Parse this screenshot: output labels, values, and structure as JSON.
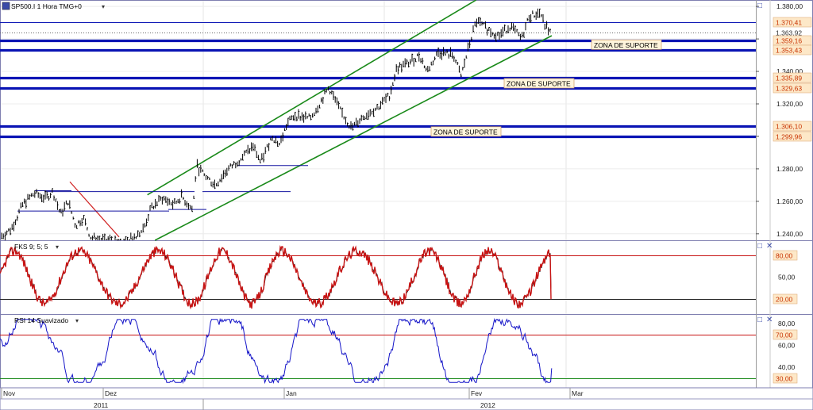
{
  "header": {
    "symbol_label": "SP500.I 1 Hora TMG+0",
    "dropdown_glyph": "▾"
  },
  "chart_data": [
    {
      "type": "line",
      "name": "SP500.I 1 Hora TMG+0",
      "subtype": "ohlc-bars",
      "y_ticks": [
        "1.380,00",
        "1.360,00",
        "1.340,00",
        "1.320,00",
        "1.300,00",
        "1.280,00",
        "1.260,00",
        "1.240,00"
      ],
      "y_tick_values": [
        1380,
        1360,
        1340,
        1320,
        1300,
        1280,
        1260,
        1240
      ],
      "ylim": [
        1236,
        1383
      ],
      "price_lines": [
        {
          "value": 1370.41,
          "label": "1.370,41",
          "style": "thin"
        },
        {
          "value": 1363.92,
          "label": "1.363,92",
          "style": "dotted"
        },
        {
          "value": 1359.16,
          "label": "1.359,16",
          "style": "thick"
        },
        {
          "value": 1353.43,
          "label": "1.353,43",
          "style": "thick"
        },
        {
          "value": 1335.89,
          "label": "1.335,89",
          "style": "thick"
        },
        {
          "value": 1329.63,
          "label": "1.329,63",
          "style": "thick"
        },
        {
          "value": 1306.1,
          "label": "1.306,10",
          "style": "thick"
        },
        {
          "value": 1299.96,
          "label": "1.299,96",
          "style": "thick"
        }
      ],
      "annotations": [
        "ZONA DE SUPORTE",
        "ZONA DE SUPORTE",
        "ZONA DE SUPORTE"
      ],
      "price_path": [
        [
          0.0,
          1238
        ],
        [
          0.015,
          1243
        ],
        [
          0.03,
          1258
        ],
        [
          0.045,
          1265
        ],
        [
          0.06,
          1262
        ],
        [
          0.07,
          1266
        ],
        [
          0.08,
          1252
        ],
        [
          0.09,
          1260
        ],
        [
          0.1,
          1245
        ],
        [
          0.11,
          1250
        ],
        [
          0.12,
          1238
        ],
        [
          0.13,
          1236
        ],
        [
          0.17,
          1236
        ],
        [
          0.19,
          1243
        ],
        [
          0.2,
          1256
        ],
        [
          0.215,
          1262
        ],
        [
          0.23,
          1258
        ],
        [
          0.24,
          1263
        ],
        [
          0.255,
          1255
        ],
        [
          0.26,
          1282
        ],
        [
          0.27,
          1276
        ],
        [
          0.285,
          1270
        ],
        [
          0.3,
          1279
        ],
        [
          0.32,
          1287
        ],
        [
          0.335,
          1294
        ],
        [
          0.345,
          1284
        ],
        [
          0.36,
          1300
        ],
        [
          0.37,
          1295
        ],
        [
          0.38,
          1308
        ],
        [
          0.39,
          1313
        ],
        [
          0.41,
          1311
        ],
        [
          0.42,
          1318
        ],
        [
          0.435,
          1330
        ],
        [
          0.45,
          1316
        ],
        [
          0.465,
          1305
        ],
        [
          0.48,
          1312
        ],
        [
          0.5,
          1318
        ],
        [
          0.515,
          1325
        ],
        [
          0.525,
          1342
        ],
        [
          0.54,
          1345
        ],
        [
          0.555,
          1350
        ],
        [
          0.565,
          1340
        ],
        [
          0.58,
          1352
        ],
        [
          0.6,
          1350
        ],
        [
          0.61,
          1337
        ],
        [
          0.62,
          1355
        ],
        [
          0.63,
          1371
        ],
        [
          0.645,
          1366
        ],
        [
          0.66,
          1362
        ],
        [
          0.675,
          1368
        ],
        [
          0.69,
          1360
        ],
        [
          0.7,
          1374
        ],
        [
          0.715,
          1376
        ],
        [
          0.72,
          1369
        ],
        [
          0.73,
          1363
        ]
      ],
      "trend_channel": {
        "lower": [
          [
            0.205,
            1236
          ],
          [
            0.73,
            1362
          ]
        ],
        "upper": [
          [
            0.195,
            1264
          ],
          [
            0.63,
            1384
          ]
        ]
      }
    },
    {
      "type": "line",
      "name": "FKS 9; 5; 5",
      "y_ticks": [
        "80,00",
        "50,00",
        "20,00"
      ],
      "y_tick_values": [
        80,
        50,
        20
      ],
      "ylim": [
        4,
        96
      ],
      "levels": [
        80,
        20
      ],
      "last_value": 20
    },
    {
      "type": "line",
      "name": "RSI 14 Suavizado",
      "y_ticks": [
        "80,00",
        "60,00",
        "40,00"
      ],
      "y_tick_values": [
        80,
        60,
        40
      ],
      "ylim": [
        24,
        86
      ],
      "levels": [
        70,
        30
      ],
      "level_labels": [
        "70,00",
        "30,00"
      ],
      "last_value": 39
    }
  ],
  "x_axis": {
    "months": [
      "Nov",
      "Dez",
      "Jan",
      "Fev",
      "Mar"
    ],
    "years": [
      "2011",
      "2012"
    ]
  },
  "colors": {
    "price_bar": "#000000",
    "support_band": "#0a14b4",
    "channel": "#1a8a1a",
    "fks_line": "#c81414",
    "rsi_line": "#1414c8",
    "level_red": "#c81414",
    "level_green": "#1a8a1a",
    "label_bg": "#fde8c8",
    "label_text": "#c83200"
  },
  "panel_buttons": [
    "□",
    "✕"
  ]
}
